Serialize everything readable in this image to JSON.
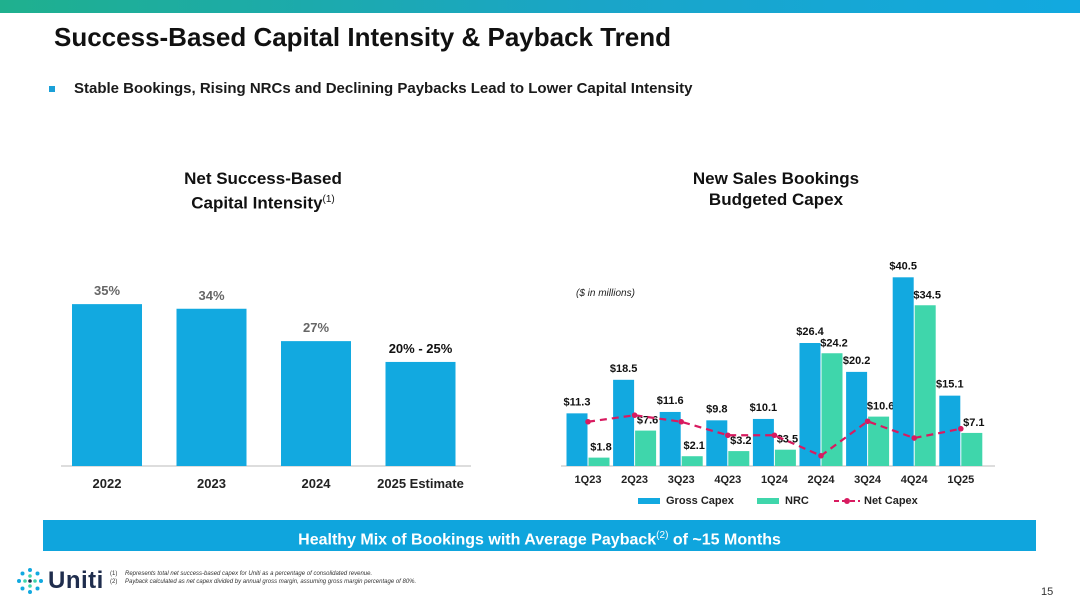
{
  "header": {
    "title": "Success-Based Capital Intensity & Payback Trend",
    "bullet": "Stable Bookings, Rising NRCs and Declining Paybacks Lead to Lower Capital Intensity"
  },
  "left_chart": {
    "title_line1": "Net Success-Based",
    "title_line2": "Capital Intensity",
    "title_sup": "(1)"
  },
  "right_chart": {
    "title_line1": "New Sales Bookings",
    "title_line2": "Budgeted Capex",
    "units_note": "($ in millions)"
  },
  "chart_data": [
    {
      "type": "bar",
      "title": "Net Success-Based Capital Intensity",
      "categories": [
        "2022",
        "2023",
        "2024",
        "2025 Estimate"
      ],
      "values": [
        35,
        34,
        27,
        22.5
      ],
      "labels": [
        "35%",
        "34%",
        "27%",
        "20% - 25%"
      ],
      "unit": "%",
      "ylim": [
        0,
        40
      ],
      "color": "#12a9e0"
    },
    {
      "type": "bar",
      "title": "New Sales Bookings Budgeted Capex",
      "categories": [
        "1Q23",
        "2Q23",
        "3Q23",
        "4Q23",
        "1Q24",
        "2Q24",
        "3Q24",
        "4Q24",
        "1Q25"
      ],
      "series": [
        {
          "name": "Gross Capex",
          "type": "bar",
          "color": "#12a9e0",
          "values": [
            11.3,
            18.5,
            11.6,
            9.8,
            10.1,
            26.4,
            20.2,
            40.5,
            15.1
          ],
          "labels": [
            "$11.3",
            "$18.5",
            "$11.6",
            "$9.8",
            "$10.1",
            "$26.4",
            "$20.2",
            "$40.5",
            "$15.1"
          ]
        },
        {
          "name": "NRC",
          "type": "bar",
          "color": "#3fd6ab",
          "values": [
            1.8,
            7.6,
            2.1,
            3.2,
            3.5,
            24.2,
            10.6,
            34.5,
            7.1
          ],
          "labels": [
            "$1.8",
            "$7.6",
            "$2.1",
            "$3.2",
            "$3.5",
            "$24.2",
            "$10.6",
            "$34.5",
            "$7.1"
          ]
        },
        {
          "name": "Net Capex",
          "type": "line",
          "color": "#d81b60",
          "values": [
            9.5,
            10.9,
            9.5,
            6.6,
            6.6,
            2.2,
            9.6,
            6.0,
            8.0
          ]
        }
      ],
      "ylim": [
        0,
        44
      ]
    }
  ],
  "legend": {
    "gross": "Gross Capex",
    "nrc": "NRC",
    "net": "Net Capex"
  },
  "banner": {
    "text_before": "Healthy Mix of Bookings with Average Payback",
    "sup": "(2)",
    "text_after": " of ~15 Months"
  },
  "footnotes": [
    {
      "num": "(1)",
      "text": "Represents total net success-based capex for Uniti as a percentage of consolidated revenue."
    },
    {
      "num": "(2)",
      "text": "Payback calculated as net capex divided by annual gross margin, assuming gross margin percentage of 80%."
    }
  ],
  "logo": {
    "text": "Uniti"
  },
  "page_number": "15"
}
